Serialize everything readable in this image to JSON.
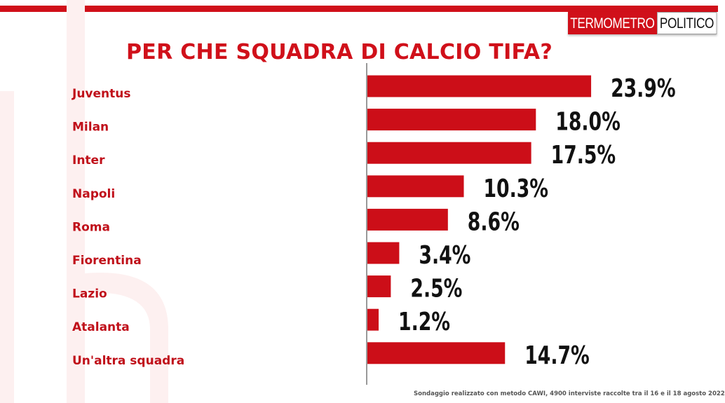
{
  "header": {
    "logo_part1": "TERMOMETRO",
    "logo_part2": "POLITICO",
    "title": "PER CHE SQUADRA DI CALCIO TIFA?"
  },
  "footer": {
    "note": "Sondaggio realizzato con metodo CAWI, 4900 interviste raccolte tra il 16 e il 18 agosto 2022"
  },
  "colors": {
    "accent": "#d0101a",
    "bar": "#cc0e18",
    "value_text": "#111111"
  },
  "chart_data": {
    "type": "bar",
    "orientation": "horizontal",
    "title": "PER CHE SQUADRA DI CALCIO TIFA?",
    "categories": [
      "Juventus",
      "Milan",
      "Inter",
      "Napoli",
      "Roma",
      "Fiorentina",
      "Lazio",
      "Atalanta",
      "Un'altra squadra"
    ],
    "values": [
      23.9,
      18.0,
      17.5,
      10.3,
      8.6,
      3.4,
      2.5,
      1.2,
      14.7
    ],
    "value_labels": [
      "23.9%",
      "18.0%",
      "17.5%",
      "10.3%",
      "8.6%",
      "3.4%",
      "2.5%",
      "1.2%",
      "14.7%"
    ],
    "xlim": [
      0,
      25
    ],
    "grid": false,
    "legend": "none"
  }
}
